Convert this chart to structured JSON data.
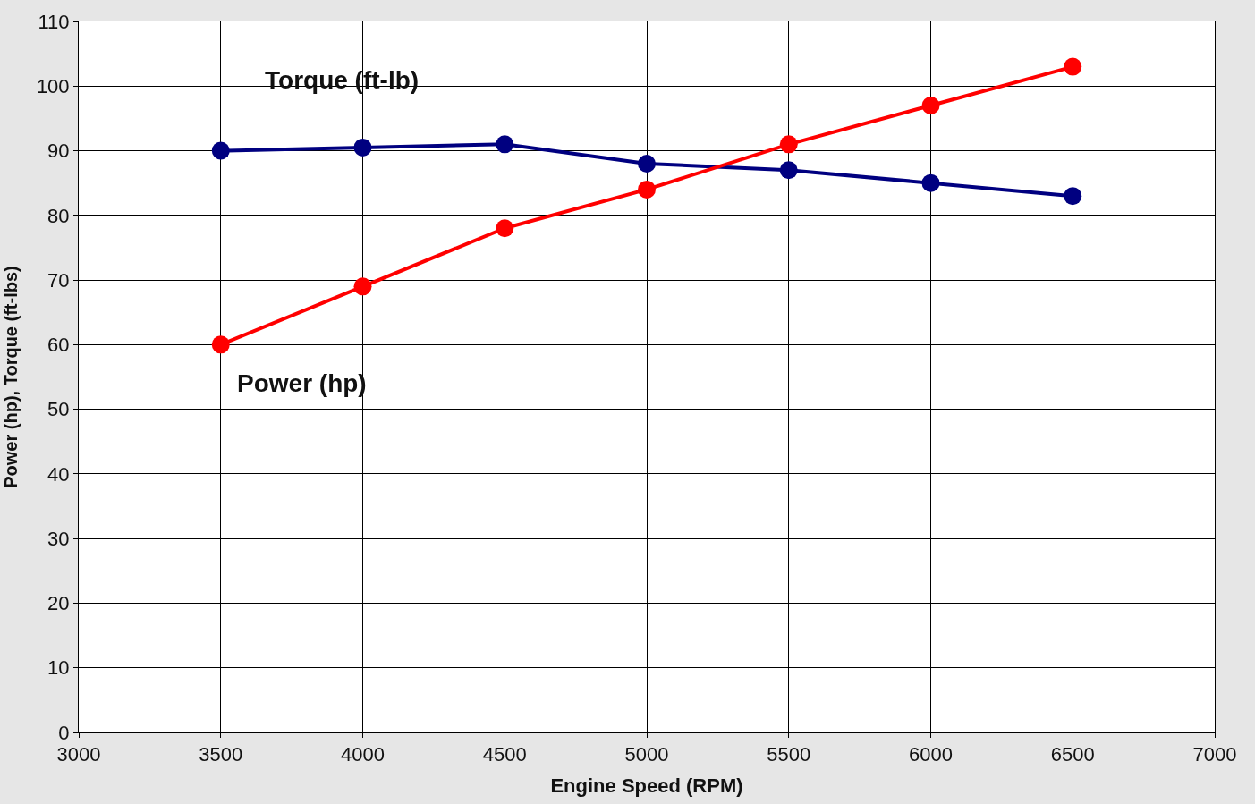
{
  "chart_data": {
    "type": "line",
    "xlabel": "Engine Speed (RPM)",
    "ylabel": "Power (hp), Torque (ft-lbs)",
    "x": [
      3500,
      4000,
      4500,
      5000,
      5500,
      6000,
      6500
    ],
    "series": [
      {
        "name": "Torque (ft-lb)",
        "color": "#000080",
        "values": [
          90,
          90.5,
          91,
          88,
          87,
          85,
          83
        ]
      },
      {
        "name": "Power (hp)",
        "color": "#ff0000",
        "values": [
          60,
          69,
          78,
          84,
          91,
          97,
          103
        ]
      }
    ],
    "xlim": [
      3000,
      7000
    ],
    "xticks": [
      3000,
      3500,
      4000,
      4500,
      5000,
      5500,
      6000,
      6500,
      7000
    ],
    "ylim": [
      0,
      110
    ],
    "yticks": [
      0,
      10,
      20,
      30,
      40,
      50,
      60,
      70,
      80,
      90,
      100,
      110
    ],
    "grid": true,
    "legend": false,
    "marker": "circle",
    "line_style": "solid"
  }
}
